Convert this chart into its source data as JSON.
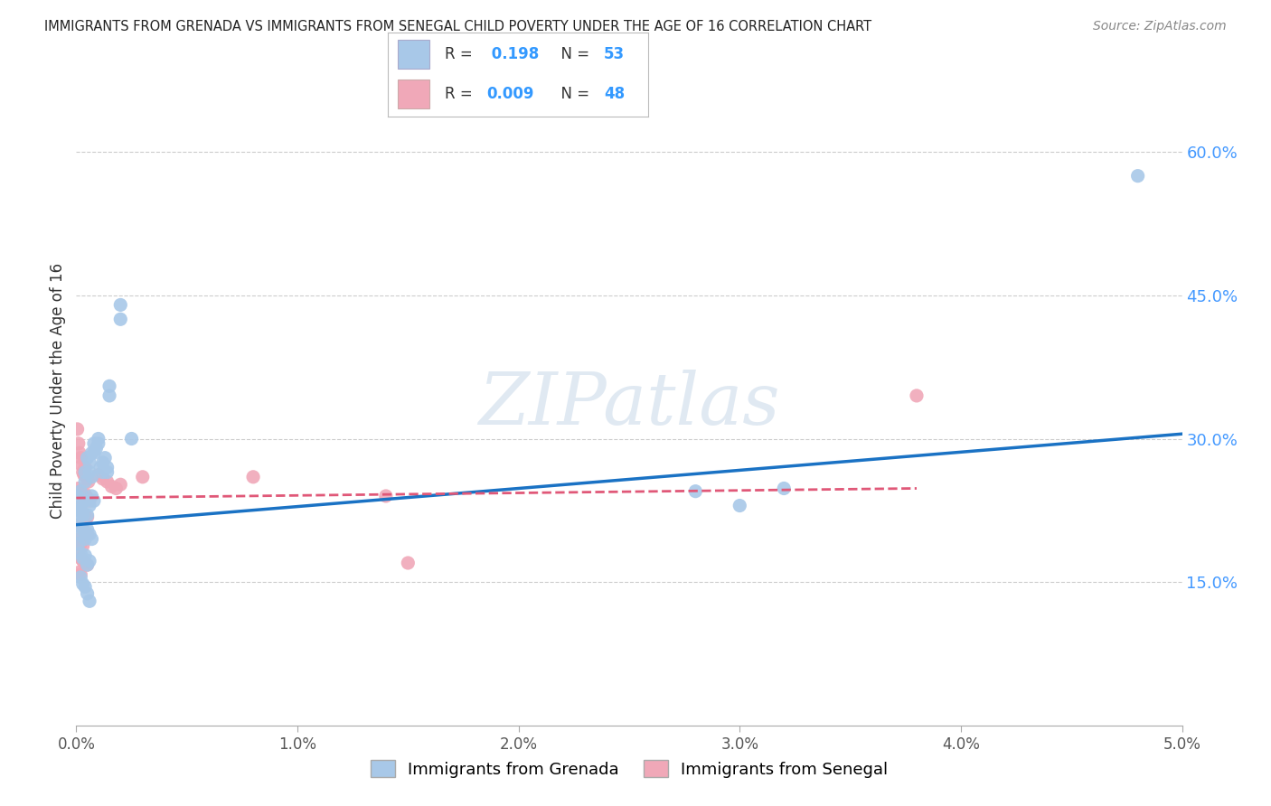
{
  "title": "IMMIGRANTS FROM GRENADA VS IMMIGRANTS FROM SENEGAL CHILD POVERTY UNDER THE AGE OF 16 CORRELATION CHART",
  "source": "Source: ZipAtlas.com",
  "ylabel": "Child Poverty Under the Age of 16",
  "xlim": [
    0.0,
    0.05
  ],
  "ylim": [
    0.0,
    0.7
  ],
  "yticks": [
    0.15,
    0.3,
    0.45,
    0.6
  ],
  "ytick_labels": [
    "15.0%",
    "30.0%",
    "45.0%",
    "60.0%"
  ],
  "xticks": [
    0.0,
    0.01,
    0.02,
    0.03,
    0.04,
    0.05
  ],
  "xtick_labels": [
    "0.0%",
    "1.0%",
    "2.0%",
    "3.0%",
    "4.0%",
    "5.0%"
  ],
  "grid_color": "#cccccc",
  "background_color": "#ffffff",
  "grenada_color": "#a8c8e8",
  "senegal_color": "#f0a8b8",
  "grenada_line_color": "#1a72c4",
  "senegal_line_color": "#e05878",
  "watermark": "ZIPatlas",
  "grenada_scatter": [
    [
      0.0002,
      0.245
    ],
    [
      0.0004,
      0.255
    ],
    [
      0.0004,
      0.265
    ],
    [
      0.0005,
      0.28
    ],
    [
      0.0006,
      0.265
    ],
    [
      0.0006,
      0.275
    ],
    [
      0.0007,
      0.26
    ],
    [
      0.0007,
      0.285
    ],
    [
      0.0008,
      0.295
    ],
    [
      0.0008,
      0.285
    ],
    [
      0.0009,
      0.29
    ],
    [
      0.001,
      0.3
    ],
    [
      0.001,
      0.295
    ],
    [
      0.0011,
      0.27
    ],
    [
      0.0012,
      0.275
    ],
    [
      0.0012,
      0.265
    ],
    [
      0.0013,
      0.28
    ],
    [
      0.0014,
      0.27
    ],
    [
      0.0014,
      0.265
    ],
    [
      0.0002,
      0.23
    ],
    [
      0.0003,
      0.22
    ],
    [
      0.0004,
      0.235
    ],
    [
      0.0005,
      0.22
    ],
    [
      0.0006,
      0.23
    ],
    [
      0.0007,
      0.24
    ],
    [
      0.0008,
      0.235
    ],
    [
      0.0002,
      0.2
    ],
    [
      0.0003,
      0.205
    ],
    [
      0.0004,
      0.195
    ],
    [
      0.0005,
      0.205
    ],
    [
      0.0006,
      0.2
    ],
    [
      0.0007,
      0.195
    ],
    [
      0.0002,
      0.18
    ],
    [
      0.0003,
      0.175
    ],
    [
      0.0004,
      0.178
    ],
    [
      0.0005,
      0.168
    ],
    [
      0.0006,
      0.172
    ],
    [
      0.0002,
      0.155
    ],
    [
      0.0003,
      0.148
    ],
    [
      0.0004,
      0.145
    ],
    [
      0.0005,
      0.138
    ],
    [
      0.0006,
      0.13
    ],
    [
      0.0001,
      0.19
    ],
    [
      0.0001,
      0.21
    ],
    [
      0.0001,
      0.225
    ],
    [
      5e-05,
      0.24
    ],
    [
      5e-05,
      0.22
    ],
    [
      0.0015,
      0.345
    ],
    [
      0.0015,
      0.355
    ],
    [
      0.002,
      0.425
    ],
    [
      0.002,
      0.44
    ],
    [
      0.0025,
      0.3
    ],
    [
      0.028,
      0.245
    ],
    [
      0.03,
      0.23
    ],
    [
      0.032,
      0.248
    ],
    [
      0.048,
      0.575
    ]
  ],
  "senegal_scatter": [
    [
      5e-05,
      0.31
    ],
    [
      0.0001,
      0.295
    ],
    [
      0.00015,
      0.285
    ],
    [
      0.0002,
      0.28
    ],
    [
      0.00025,
      0.272
    ],
    [
      0.0003,
      0.265
    ],
    [
      0.00035,
      0.262
    ],
    [
      0.0004,
      0.27
    ],
    [
      0.00045,
      0.26
    ],
    [
      0.0005,
      0.258
    ],
    [
      0.00055,
      0.255
    ],
    [
      0.0001,
      0.248
    ],
    [
      0.0002,
      0.245
    ],
    [
      0.0003,
      0.24
    ],
    [
      0.0004,
      0.242
    ],
    [
      0.0005,
      0.238
    ],
    [
      0.0006,
      0.235
    ],
    [
      0.0001,
      0.228
    ],
    [
      0.0002,
      0.225
    ],
    [
      0.0003,
      0.222
    ],
    [
      0.0004,
      0.22
    ],
    [
      0.0005,
      0.218
    ],
    [
      0.0001,
      0.21
    ],
    [
      0.0002,
      0.208
    ],
    [
      0.0003,
      0.205
    ],
    [
      0.0004,
      0.202
    ],
    [
      0.0005,
      0.2
    ],
    [
      0.0001,
      0.195
    ],
    [
      0.0002,
      0.19
    ],
    [
      0.0003,
      0.188
    ],
    [
      0.0001,
      0.178
    ],
    [
      0.0002,
      0.175
    ],
    [
      0.0003,
      0.172
    ],
    [
      0.0004,
      0.17
    ],
    [
      0.0005,
      0.168
    ],
    [
      0.0001,
      0.16
    ],
    [
      0.0002,
      0.158
    ],
    [
      0.001,
      0.262
    ],
    [
      0.0012,
      0.258
    ],
    [
      0.0014,
      0.255
    ],
    [
      0.0016,
      0.25
    ],
    [
      0.0018,
      0.248
    ],
    [
      0.002,
      0.252
    ],
    [
      0.003,
      0.26
    ],
    [
      0.008,
      0.26
    ],
    [
      0.014,
      0.24
    ],
    [
      0.015,
      0.17
    ],
    [
      0.038,
      0.345
    ]
  ],
  "grenada_trendline": [
    [
      0.0,
      0.21
    ],
    [
      0.05,
      0.305
    ]
  ],
  "senegal_trendline": [
    [
      0.0,
      0.238
    ],
    [
      0.038,
      0.248
    ]
  ]
}
